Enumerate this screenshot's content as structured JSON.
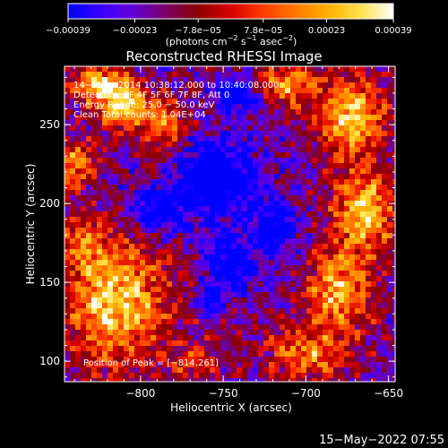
{
  "chart_data": {
    "type": "heatmap",
    "title": "Reconstructed RHESSI Image",
    "xlabel": "Heliocentric X (arcsec)",
    "ylabel": "Heliocentric Y (arcsec)",
    "xlim": [
      -846,
      -646
    ],
    "ylim": [
      87,
      287
    ],
    "x_ticks": [
      -800,
      -750,
      -700,
      -650
    ],
    "x_tick_labels": [
      "−800",
      "−750",
      "−700",
      "−650"
    ],
    "y_ticks": [
      100,
      150,
      200,
      250
    ],
    "y_tick_labels": [
      "100",
      "150",
      "200",
      "250"
    ],
    "colorbar": {
      "range": [
        -0.00039,
        0.00039
      ],
      "ticks": [
        -0.00039,
        -0.00023,
        -7.8e-05,
        7.8e-05,
        0.00023,
        0.00039
      ],
      "tick_labels": [
        "−0.00039",
        "−0.00023",
        "−7.8e−05",
        "7.8e−05",
        "0.00023",
        "0.00039"
      ],
      "unit_prefix": "(photons cm",
      "unit_sup1": "−2",
      "unit_mid": " s",
      "unit_sup2": "−1",
      "unit_mid2": " asec",
      "unit_sup3": "−2",
      "unit_suffix": ")",
      "colors": [
        "#0000ff",
        "#3a00ff",
        "#6400d8",
        "#7a0066",
        "#8c0000",
        "#d80000",
        "#ff3c00",
        "#ff7a00",
        "#ffb000",
        "#ffe24c",
        "#ffffff"
      ]
    },
    "annotations": [
      "14−May−2014 10:38:12.000 to 10:40:08.000",
      "Detectors: 3F 4F 5F 6F 7F 8F, Att 0",
      "Energy Range: 25.0 − 50.0 keV",
      "Clean      Total counts: 1.04E+04"
    ],
    "peak_label": "Position of Peak = [−814,261]",
    "peak": [
      -814,
      261
    ],
    "hot_regions": [
      {
        "x": -825,
        "y": 275,
        "sx": 12,
        "sy": 8,
        "a": 0.95
      },
      {
        "x": -810,
        "y": 262,
        "sx": 10,
        "sy": 10,
        "a": 1.0
      },
      {
        "x": -840,
        "y": 225,
        "sx": 9,
        "sy": 10,
        "a": 0.75
      },
      {
        "x": -785,
        "y": 250,
        "sx": 9,
        "sy": 12,
        "a": 0.7
      },
      {
        "x": -815,
        "y": 138,
        "sx": 22,
        "sy": 30,
        "a": 1.0
      },
      {
        "x": -835,
        "y": 175,
        "sx": 8,
        "sy": 10,
        "a": 0.5
      },
      {
        "x": -672,
        "y": 255,
        "sx": 14,
        "sy": 18,
        "a": 0.95
      },
      {
        "x": -712,
        "y": 275,
        "sx": 14,
        "sy": 9,
        "a": 0.85
      },
      {
        "x": -665,
        "y": 195,
        "sx": 14,
        "sy": 18,
        "a": 0.95
      },
      {
        "x": -680,
        "y": 145,
        "sx": 14,
        "sy": 18,
        "a": 0.9
      },
      {
        "x": -700,
        "y": 105,
        "sx": 18,
        "sy": 12,
        "a": 0.7
      },
      {
        "x": -755,
        "y": 130,
        "sx": 9,
        "sy": 9,
        "a": 0.45
      },
      {
        "x": -765,
        "y": 100,
        "sx": 10,
        "sy": 8,
        "a": 0.5
      }
    ],
    "cold_regions": [
      {
        "x": -755,
        "y": 215,
        "sx": 16,
        "sy": 16,
        "a": 0.9
      },
      {
        "x": -745,
        "y": 160,
        "sx": 10,
        "sy": 12,
        "a": 0.8
      },
      {
        "x": -758,
        "y": 135,
        "sx": 6,
        "sy": 8,
        "a": 1.0
      },
      {
        "x": -740,
        "y": 270,
        "sx": 10,
        "sy": 8,
        "a": 0.7
      },
      {
        "x": -790,
        "y": 195,
        "sx": 12,
        "sy": 10,
        "a": 0.7
      },
      {
        "x": -720,
        "y": 185,
        "sx": 10,
        "sy": 12,
        "a": 0.6
      }
    ]
  },
  "footer": {
    "timestamp": "15−May−2022 07:55"
  }
}
